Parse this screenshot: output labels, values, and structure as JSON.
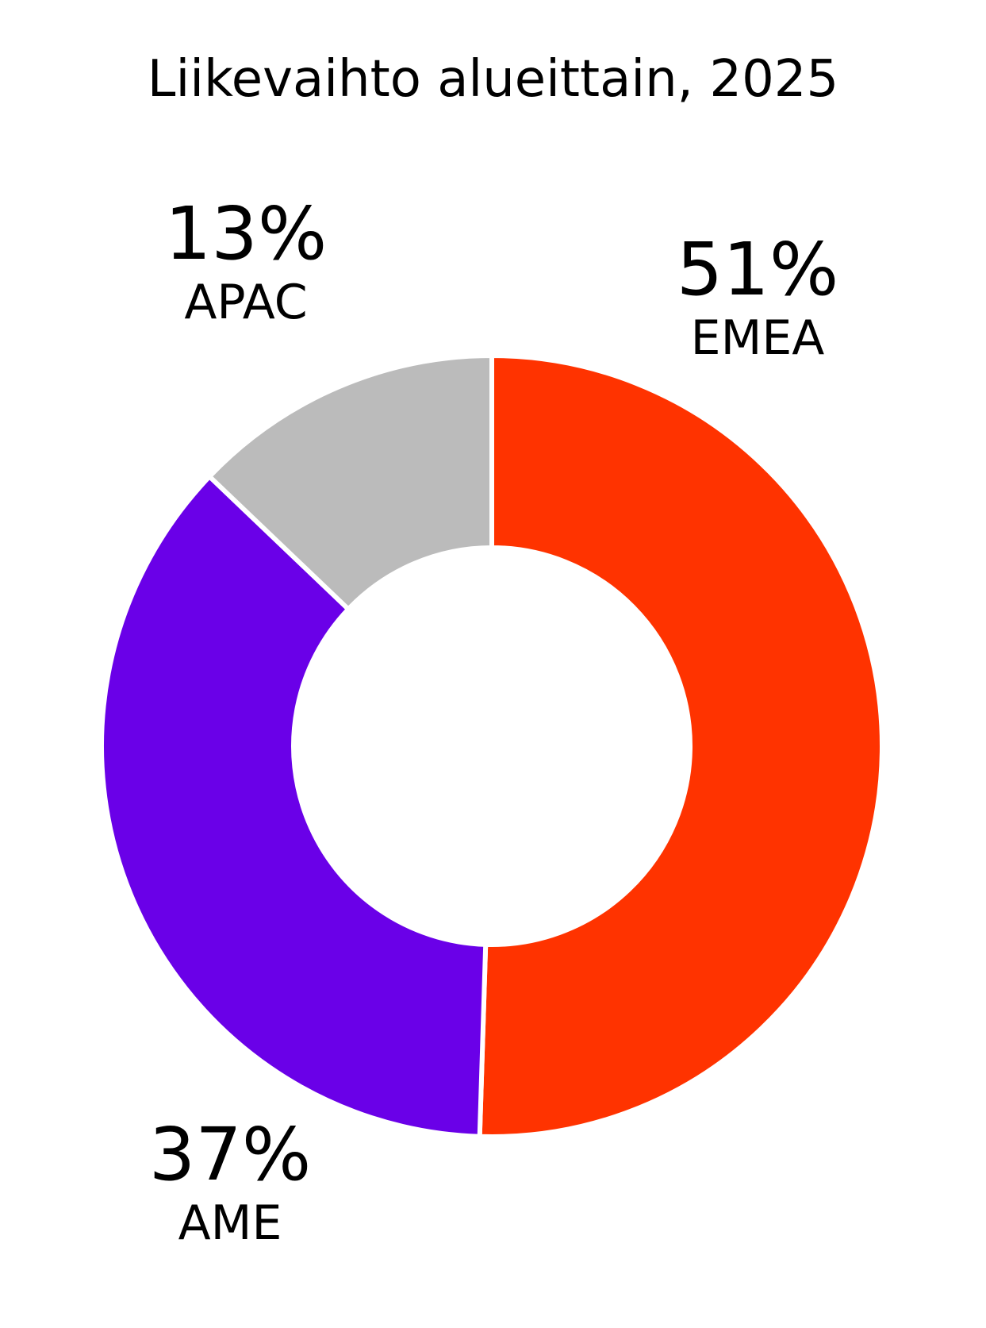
{
  "chart_data": {
    "type": "pie",
    "title": "Liikevaihto alueittain, 2025",
    "variant": "donut",
    "slices": [
      {
        "label": "EMEA",
        "value": 51,
        "value_label": "51%",
        "color": "#ff3300"
      },
      {
        "label": "AME",
        "value": 37,
        "value_label": "37%",
        "color": "#6a00e8"
      },
      {
        "label": "APAC",
        "value": 13,
        "value_label": "13%",
        "color": "#bbbbbb"
      }
    ],
    "separator_color": "#ffffff",
    "legend": "none"
  }
}
